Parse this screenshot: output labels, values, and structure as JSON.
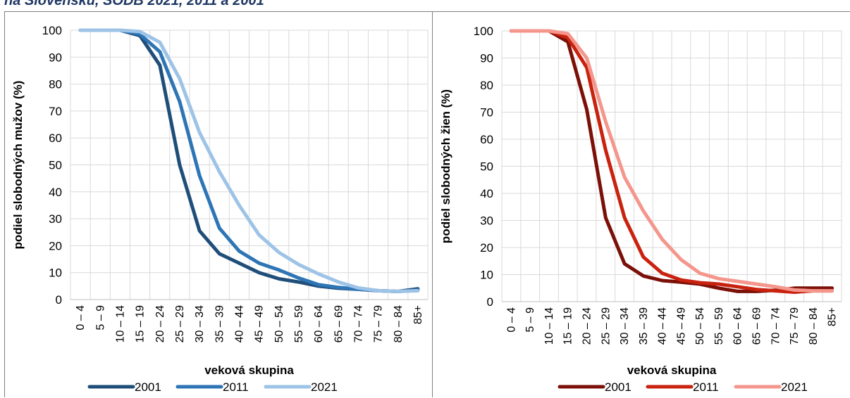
{
  "heading": "na Slovensku, SODB 2021, 2011 a 2001",
  "chart_data": [
    {
      "type": "line",
      "xlabel": "veková skupina",
      "ylabel": "podiel slobodných mužov (%)",
      "categories": [
        "0 – 4",
        "5 – 9",
        "10 – 14",
        "15 – 19",
        "20 – 24",
        "25 – 29",
        "30 – 34",
        "35 – 39",
        "40 – 44",
        "45 – 49",
        "50 – 54",
        "55 – 59",
        "60 – 64",
        "65 – 69",
        "70 – 74",
        "75 – 79",
        "80 – 84",
        "85+"
      ],
      "ylim": [
        0,
        100
      ],
      "yticks": [
        0,
        10,
        20,
        30,
        40,
        50,
        60,
        70,
        80,
        90,
        100
      ],
      "grid": true,
      "legend_position": "bottom",
      "series": [
        {
          "name": "2001",
          "color": "#1f4e79",
          "values": [
            100,
            100,
            100,
            98,
            87,
            50,
            25.5,
            17,
            13.5,
            10,
            7.7,
            6.5,
            5,
            4.2,
            3.8,
            3.3,
            3,
            4
          ]
        },
        {
          "name": "2011",
          "color": "#2e75b6",
          "values": [
            100,
            100,
            100,
            98.5,
            92,
            73.5,
            46,
            26.5,
            18,
            13.5,
            11,
            8,
            5.5,
            4.5,
            3.8,
            3.3,
            3,
            3.5
          ]
        },
        {
          "name": "2021",
          "color": "#9dc3e6",
          "values": [
            100,
            100,
            100,
            99.5,
            95.5,
            82,
            62,
            47.5,
            35,
            24,
            17.5,
            13,
            9.5,
            6.5,
            4.3,
            3.3,
            3,
            3.3
          ]
        }
      ]
    },
    {
      "type": "line",
      "xlabel": "veková skupina",
      "ylabel": "podiel slobodných žien (%)",
      "categories": [
        "0 – 4",
        "5 – 9",
        "10 – 14",
        "15 – 19",
        "20 – 24",
        "25 – 29",
        "30 – 34",
        "35 – 39",
        "40 – 44",
        "45 – 49",
        "50 – 54",
        "55 – 59",
        "60 – 64",
        "65 – 69",
        "70 – 74",
        "75 – 79",
        "80 – 84",
        "85+"
      ],
      "ylim": [
        0,
        100
      ],
      "yticks": [
        0,
        10,
        20,
        30,
        40,
        50,
        60,
        70,
        80,
        90,
        100
      ],
      "grid": true,
      "legend_position": "bottom",
      "series": [
        {
          "name": "2001",
          "color": "#7b1008",
          "values": [
            100,
            100,
            100,
            96,
            71,
            31,
            14,
            9.5,
            7.8,
            7.2,
            6.5,
            5,
            3.8,
            3.8,
            4.2,
            5,
            5,
            5
          ]
        },
        {
          "name": "2011",
          "color": "#c9220f",
          "values": [
            100,
            100,
            100,
            97.5,
            86.5,
            56,
            31,
            16.5,
            10.5,
            8,
            7,
            6.5,
            5.5,
            4.5,
            4,
            3.5,
            4,
            4
          ]
        },
        {
          "name": "2021",
          "color": "#f4968c",
          "values": [
            100,
            100,
            100,
            99,
            90,
            66.5,
            46,
            33.5,
            23,
            15.5,
            10.5,
            8.5,
            7.5,
            6.5,
            5.5,
            4.3,
            4,
            4
          ]
        }
      ]
    }
  ]
}
